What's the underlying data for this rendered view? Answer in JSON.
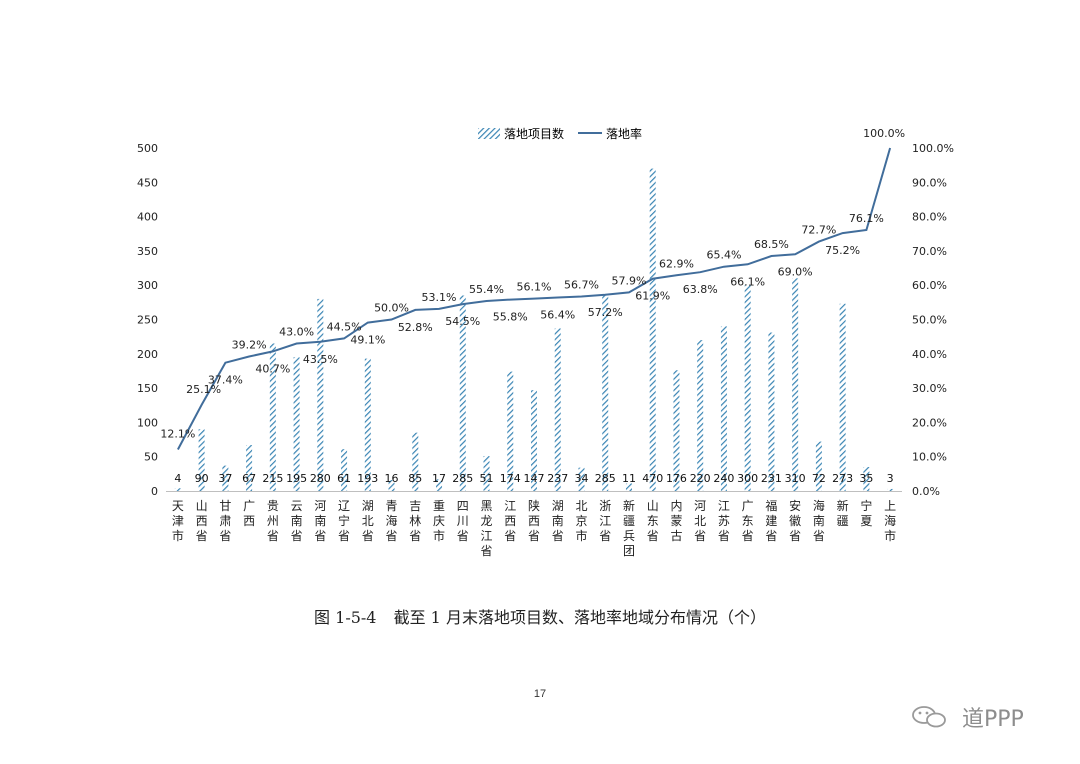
{
  "chart_data": {
    "type": "bar",
    "categories": [
      "天津市",
      "山西省",
      "甘肃省",
      "广西",
      "贵州省",
      "云南省",
      "河南省",
      "辽宁省",
      "湖北省",
      "青海省",
      "吉林省",
      "重庆市",
      "四川省",
      "黑龙江省",
      "江西省",
      "陕西省",
      "湖南省",
      "北京市",
      "浙江省",
      "新疆兵团",
      "山东省",
      "内蒙古",
      "河北省",
      "江苏省",
      "广东省",
      "福建省",
      "安徽省",
      "海南省",
      "新疆",
      "宁夏",
      "上海市"
    ],
    "series": [
      {
        "name": "落地项目数",
        "type": "bar",
        "axis": "left",
        "values": [
          4,
          90,
          37,
          67,
          215,
          195,
          280,
          61,
          193,
          16,
          85,
          17,
          285,
          51,
          174,
          147,
          237,
          34,
          285,
          11,
          470,
          176,
          220,
          240,
          300,
          231,
          310,
          72,
          273,
          35,
          3
        ]
      },
      {
        "name": "落地率",
        "type": "line",
        "axis": "right",
        "values": [
          12.1,
          25.1,
          37.4,
          39.2,
          40.7,
          43.0,
          43.5,
          44.5,
          49.1,
          50.0,
          52.8,
          53.1,
          54.5,
          55.4,
          55.8,
          56.1,
          56.4,
          56.7,
          57.2,
          57.9,
          61.9,
          62.9,
          63.8,
          65.4,
          66.1,
          68.5,
          69.0,
          72.7,
          75.2,
          76.1,
          100.0
        ],
        "labels": [
          "12.1%",
          "25.1%",
          "37.4%",
          "39.2%",
          "40.7%",
          "43.0%",
          "43.5%",
          "44.5%",
          "49.1%",
          "50.0%",
          "52.8%",
          "53.1%",
          "54.5%",
          "55.4%",
          "55.8%",
          "56.1%",
          "56.4%",
          "56.7%",
          "57.2%",
          "57.9%",
          "61.9%",
          "62.9%",
          "63.8%",
          "65.4%",
          "66.1%",
          "68.5%",
          "69.0%",
          "72.7%",
          "75.2%",
          "76.1%",
          "100.0%"
        ]
      }
    ],
    "ylim_left": [
      0,
      500
    ],
    "yticks_left": [
      "0",
      "50",
      "100",
      "150",
      "200",
      "250",
      "300",
      "350",
      "400",
      "450",
      "500"
    ],
    "ylim_right": [
      0,
      100
    ],
    "yticks_right": [
      "0.0%",
      "10.0%",
      "20.0%",
      "30.0%",
      "40.0%",
      "50.0%",
      "60.0%",
      "70.0%",
      "80.0%",
      "90.0%",
      "100.0%"
    ],
    "legend_position": "top-center",
    "grid": false
  },
  "colors": {
    "bar": "#3a85b4",
    "line": "#416d9b",
    "axis": "#bfbfbf"
  },
  "caption": {
    "fig_no": "图 1-5-4",
    "text": "截至 1 月末落地项目数、落地率地域分布情况（个）"
  },
  "page_number": "17",
  "watermark": {
    "text": "道PPP",
    "icon": "wechat-icon"
  }
}
